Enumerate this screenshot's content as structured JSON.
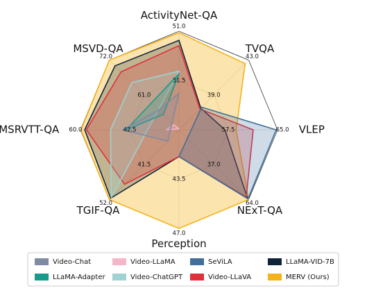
{
  "chart_data": {
    "type": "radar",
    "axes": [
      {
        "name": "ActivityNet-QA",
        "lim": [
          12,
          51
        ],
        "ticks": [
          31.5,
          {
            "value": 51,
            "label": "51.0"
          }
        ]
      },
      {
        "name": "TVQA",
        "lim": [
          35,
          43
        ],
        "ticks": [
          {
            "value": 39,
            "label": "39.0"
          },
          {
            "value": 43,
            "label": "43.0"
          }
        ]
      },
      {
        "name": "VLEP",
        "lim": [
          50,
          65
        ],
        "ticks": [
          57.5,
          {
            "value": 65,
            "label": "65.0"
          }
        ]
      },
      {
        "name": "NExT-QA",
        "lim": [
          10,
          64
        ],
        "ticks": [
          {
            "value": 37,
            "label": "37.0"
          },
          {
            "value": 64,
            "label": "64.0"
          }
        ]
      },
      {
        "name": "Perception",
        "lim": [
          40,
          47
        ],
        "ticks": [
          43.5,
          {
            "value": 47,
            "label": "47.0"
          }
        ]
      },
      {
        "name": "TGIF-QA",
        "lim": [
          31,
          52
        ],
        "ticks": [
          41.5,
          {
            "value": 52,
            "label": "52.0"
          }
        ]
      },
      {
        "name": "MSRVTT-QA",
        "lim": [
          25,
          60
        ],
        "ticks": [
          42.5,
          {
            "value": 60,
            "label": "60.0"
          }
        ]
      },
      {
        "name": "MSVD-QA",
        "lim": [
          50,
          72
        ],
        "ticks": [
          {
            "value": 61,
            "label": "61.0"
          },
          {
            "value": 72,
            "label": "72.0"
          }
        ]
      }
    ],
    "series": [
      {
        "name": "Video-Chat",
        "color": "#7f8aa3",
        "values": [
          26.5,
          null,
          null,
          null,
          null,
          34.4,
          45.0,
          56.3
        ]
      },
      {
        "name": "LLaMA-Adapter",
        "color": "#1a9a8a",
        "values": [
          34.2,
          null,
          null,
          null,
          null,
          null,
          43.8,
          54.9
        ]
      },
      {
        "name": "Video-LLaMA",
        "color": "#f4b6c8",
        "values": [
          12.4,
          null,
          null,
          null,
          null,
          null,
          29.6,
          51.6
        ]
      },
      {
        "name": "Video-ChatGPT",
        "color": "#9fd3d3",
        "values": [
          35.2,
          null,
          null,
          null,
          null,
          51.4,
          49.3,
          64.9
        ]
      },
      {
        "name": "SeViLA",
        "color": "#3f6f9a",
        "values": [
          null,
          37.6,
          64.8,
          63.5,
          41.9,
          null,
          null,
          null
        ]
      },
      {
        "name": "Video-LLaVA",
        "color": "#e0303a",
        "values": [
          45.3,
          37.4,
          61.3,
          62.1,
          41.9,
          47.4,
          57.9,
          68.3
        ]
      },
      {
        "name": "LLaMA-VID-7B",
        "color": "#0e2238",
        "values": [
          47.4,
          37.5,
          57.0,
          63.2,
          41.9,
          51.6,
          58.5,
          70.2
        ]
      },
      {
        "name": "MERV (Ours)",
        "color": "#f5b21b",
        "values": [
          50.4,
          42.6,
          58.7,
          64.0,
          47.0,
          52.0,
          59.8,
          72.0
        ]
      }
    ]
  }
}
